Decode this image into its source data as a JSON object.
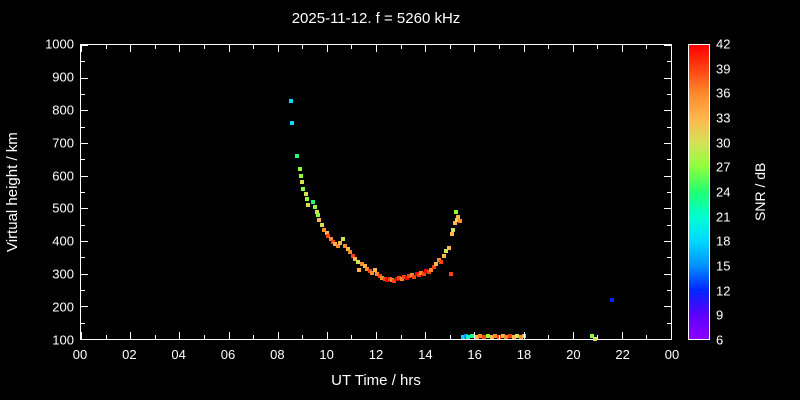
{
  "title": "2025-11-12. f = 5260 kHz",
  "chart_data": {
    "type": "scatter",
    "title": "2025-11-12. f = 5260 kHz",
    "xlabel": "UT Time / hrs",
    "ylabel": "Virtual height / km",
    "colorbar_label": "SNR / dB",
    "xlim": [
      0,
      24
    ],
    "ylim": [
      100,
      1000
    ],
    "x_ticks": {
      "values": [
        0,
        2,
        4,
        6,
        8,
        10,
        12,
        14,
        16,
        18,
        20,
        22,
        24
      ],
      "labels": [
        "00",
        "02",
        "04",
        "06",
        "08",
        "10",
        "12",
        "14",
        "16",
        "18",
        "20",
        "22",
        "00"
      ]
    },
    "x_minor_ticks": [
      1,
      3,
      5,
      7,
      9,
      11,
      13,
      15,
      17,
      19,
      21,
      23
    ],
    "y_ticks": [
      100,
      200,
      300,
      400,
      500,
      600,
      700,
      800,
      900,
      1000
    ],
    "y_minor_ticks": [
      150,
      250,
      350,
      450,
      550,
      650,
      750,
      850,
      950
    ],
    "snr_range": [
      6,
      42
    ],
    "colorbar_ticks": [
      6,
      9,
      12,
      15,
      18,
      21,
      24,
      27,
      30,
      33,
      36,
      39,
      42
    ],
    "color_stops": [
      {
        "v": 6,
        "c": "#8b00ff"
      },
      {
        "v": 9,
        "c": "#5a00ff"
      },
      {
        "v": 12,
        "c": "#0026ff"
      },
      {
        "v": 15,
        "c": "#0091ff"
      },
      {
        "v": 18,
        "c": "#00d9ff"
      },
      {
        "v": 21,
        "c": "#00ffd0"
      },
      {
        "v": 24,
        "c": "#21ff73"
      },
      {
        "v": 27,
        "c": "#8cff3c"
      },
      {
        "v": 30,
        "c": "#d4e157"
      },
      {
        "v": 33,
        "c": "#ffb74d"
      },
      {
        "v": 36,
        "c": "#ff8a2a"
      },
      {
        "v": 39,
        "c": "#ff4414"
      },
      {
        "v": 42,
        "c": "#ff0000"
      }
    ],
    "points": [
      [
        8.55,
        830,
        18
      ],
      [
        8.6,
        760,
        18
      ],
      [
        8.8,
        660,
        24
      ],
      [
        8.9,
        620,
        27
      ],
      [
        8.95,
        600,
        27
      ],
      [
        9.0,
        580,
        30
      ],
      [
        9.05,
        560,
        27
      ],
      [
        9.15,
        545,
        30
      ],
      [
        9.2,
        530,
        27
      ],
      [
        9.25,
        510,
        30
      ],
      [
        9.45,
        520,
        24
      ],
      [
        9.5,
        505,
        27
      ],
      [
        9.6,
        490,
        30
      ],
      [
        9.65,
        480,
        27
      ],
      [
        9.7,
        465,
        33
      ],
      [
        9.8,
        450,
        30
      ],
      [
        9.9,
        435,
        36
      ],
      [
        10.0,
        425,
        33
      ],
      [
        10.05,
        415,
        39
      ],
      [
        10.15,
        405,
        36
      ],
      [
        10.25,
        398,
        39
      ],
      [
        10.35,
        390,
        33
      ],
      [
        10.45,
        385,
        36
      ],
      [
        10.55,
        395,
        33
      ],
      [
        10.65,
        405,
        30
      ],
      [
        10.75,
        385,
        36
      ],
      [
        10.85,
        375,
        33
      ],
      [
        10.95,
        365,
        36
      ],
      [
        11.05,
        355,
        39
      ],
      [
        11.15,
        345,
        33
      ],
      [
        11.25,
        335,
        30
      ],
      [
        11.3,
        310,
        33
      ],
      [
        11.45,
        330,
        36
      ],
      [
        11.55,
        322,
        33
      ],
      [
        11.65,
        315,
        36
      ],
      [
        11.75,
        308,
        39
      ],
      [
        11.85,
        302,
        36
      ],
      [
        11.95,
        312,
        33
      ],
      [
        12.05,
        298,
        36
      ],
      [
        12.15,
        292,
        39
      ],
      [
        12.25,
        288,
        36
      ],
      [
        12.35,
        284,
        39
      ],
      [
        12.45,
        280,
        42
      ],
      [
        12.55,
        285,
        39
      ],
      [
        12.65,
        282,
        36
      ],
      [
        12.75,
        278,
        39
      ],
      [
        12.85,
        283,
        42
      ],
      [
        12.95,
        288,
        39
      ],
      [
        13.05,
        284,
        36
      ],
      [
        13.15,
        290,
        39
      ],
      [
        13.25,
        286,
        42
      ],
      [
        13.35,
        292,
        39
      ],
      [
        13.45,
        296,
        36
      ],
      [
        13.55,
        290,
        39
      ],
      [
        13.65,
        300,
        42
      ],
      [
        13.75,
        295,
        39
      ],
      [
        13.85,
        302,
        36
      ],
      [
        13.95,
        298,
        39
      ],
      [
        14.05,
        308,
        42
      ],
      [
        14.15,
        304,
        39
      ],
      [
        14.25,
        312,
        36
      ],
      [
        14.35,
        320,
        39
      ],
      [
        14.45,
        330,
        33
      ],
      [
        14.55,
        342,
        36
      ],
      [
        14.65,
        335,
        39
      ],
      [
        14.75,
        355,
        33
      ],
      [
        14.85,
        368,
        30
      ],
      [
        14.95,
        380,
        33
      ],
      [
        15.05,
        300,
        39
      ],
      [
        15.1,
        420,
        33
      ],
      [
        15.15,
        435,
        30
      ],
      [
        15.2,
        455,
        33
      ],
      [
        15.25,
        490,
        27
      ],
      [
        15.3,
        465,
        30
      ],
      [
        15.35,
        475,
        33
      ],
      [
        15.4,
        460,
        36
      ],
      [
        15.55,
        105,
        18
      ],
      [
        15.65,
        110,
        15
      ],
      [
        15.75,
        105,
        21
      ],
      [
        15.9,
        108,
        24
      ],
      [
        16.1,
        105,
        33
      ],
      [
        16.25,
        108,
        36
      ],
      [
        16.4,
        105,
        39
      ],
      [
        16.55,
        110,
        27
      ],
      [
        16.7,
        105,
        33
      ],
      [
        16.85,
        108,
        36
      ],
      [
        17.0,
        105,
        39
      ],
      [
        17.15,
        108,
        33
      ],
      [
        17.3,
        105,
        36
      ],
      [
        17.45,
        110,
        39
      ],
      [
        17.6,
        105,
        33
      ],
      [
        17.75,
        108,
        30
      ],
      [
        17.9,
        105,
        36
      ],
      [
        18.0,
        108,
        33
      ],
      [
        20.8,
        110,
        27
      ],
      [
        20.9,
        100,
        30
      ],
      [
        21.6,
        220,
        12
      ]
    ]
  }
}
